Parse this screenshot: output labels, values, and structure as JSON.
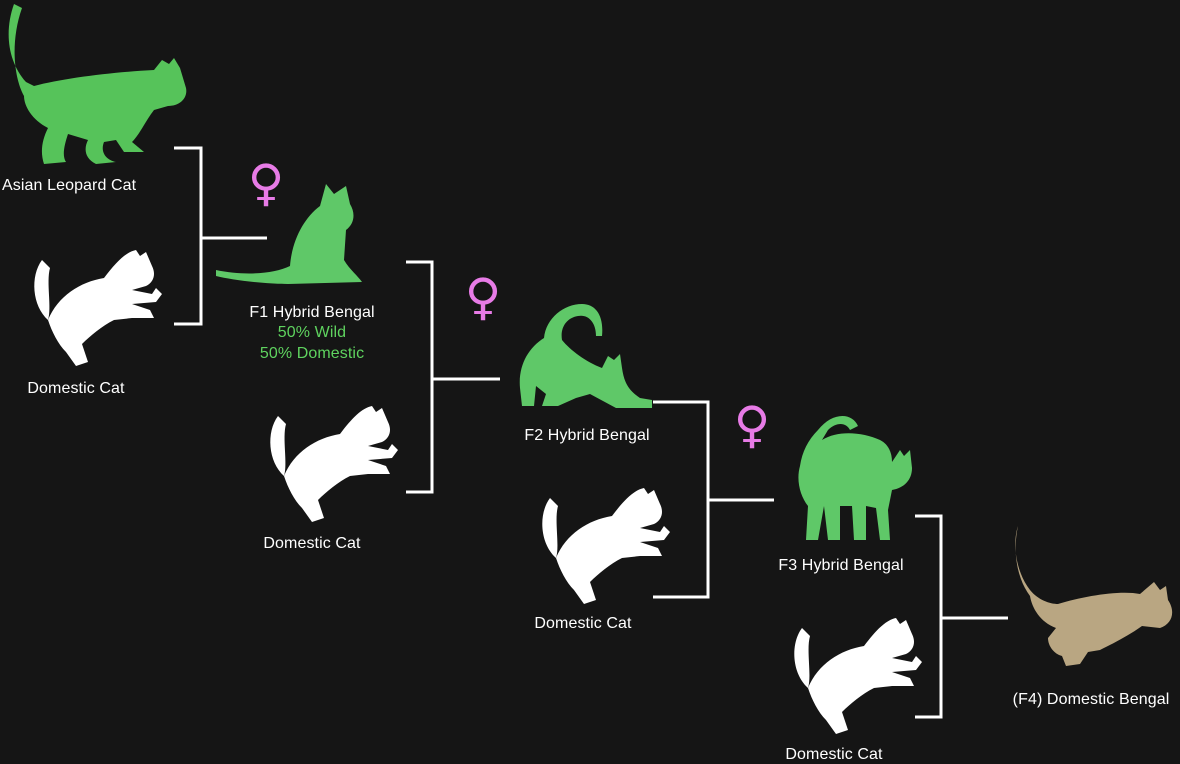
{
  "colors": {
    "background": "#151515",
    "wild": "#56c35a",
    "hybrid": "#5fc868",
    "domestic": "#ffffff",
    "domestic_bengal": "#b9a682",
    "female_symbol": "#e77be6",
    "bracket": "#ffffff",
    "pct_text": "#5fd35f"
  },
  "nodes": {
    "asian_leopard": {
      "label": "Asian Leopard Cat",
      "icon": "walking-cat-icon"
    },
    "domestic_1": {
      "label": "Domestic Cat",
      "icon": "pouncing-cat-icon"
    },
    "f1": {
      "label": "F1 Hybrid Bengal",
      "wild_pct": "50% Wild",
      "domestic_pct": "50% Domestic",
      "icon": "sitting-cat-icon"
    },
    "domestic_2": {
      "label": "Domestic Cat",
      "icon": "pouncing-cat-icon"
    },
    "f2": {
      "label": "F2 Hybrid Bengal",
      "icon": "stretching-cat-icon"
    },
    "domestic_3": {
      "label": "Domestic Cat",
      "icon": "pouncing-cat-icon"
    },
    "f3": {
      "label": "F3 Hybrid Bengal",
      "icon": "arched-cat-icon"
    },
    "domestic_4": {
      "label": "Domestic Cat",
      "icon": "pouncing-cat-icon"
    },
    "f4": {
      "label": "(F4) Domestic Bengal",
      "icon": "running-cat-icon"
    }
  },
  "female_symbol": {
    "glyph": "♀",
    "icon": "female-symbol-icon"
  }
}
